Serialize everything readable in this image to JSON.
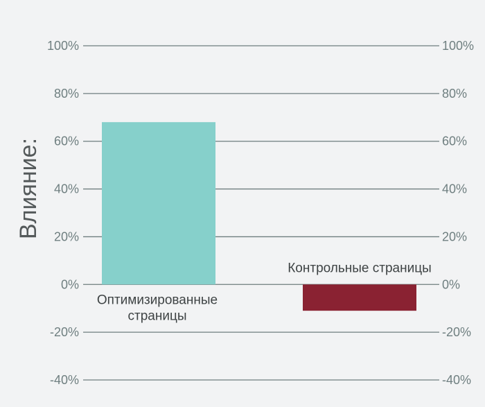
{
  "chart_data": {
    "type": "bar",
    "ylabel": "Влияние:",
    "ylim": [
      -40,
      100
    ],
    "yticks": [
      100,
      80,
      60,
      40,
      20,
      0,
      -20,
      -40
    ],
    "tick_suffix": "%",
    "grid": true,
    "dual_y_axis": true,
    "categories": [
      {
        "label_lines": [
          "Оптимизированные",
          "страницы"
        ],
        "value": 68,
        "color": "#86d0cb"
      },
      {
        "label_lines": [
          "Контрольные страницы"
        ],
        "value": -11,
        "color": "#8a2232"
      }
    ]
  }
}
